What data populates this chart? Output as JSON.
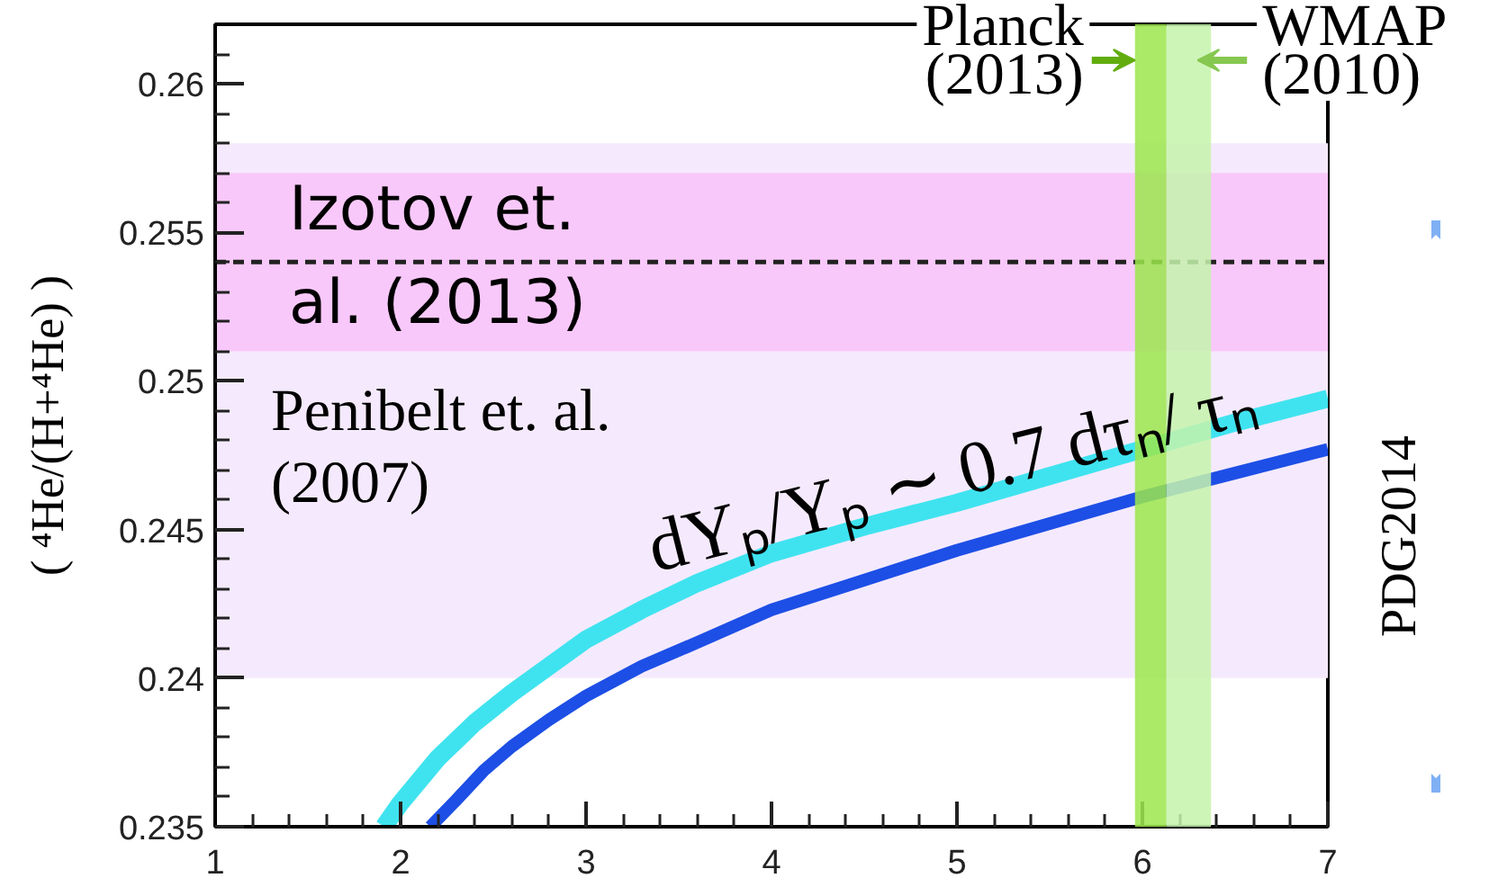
{
  "chart_data": {
    "type": "line",
    "ylabel": "( ⁴He/(H+⁴He) )",
    "series": [
      {
        "color": "#3fe3ef",
        "x": [
          1.91,
          2.0,
          2.2,
          2.4,
          2.6,
          2.8,
          3.0,
          3.3,
          3.6,
          4.0,
          4.5,
          5.0,
          5.5,
          6.0,
          6.5,
          7.0
        ],
        "values": [
          0.235,
          0.2358,
          0.2373,
          0.2385,
          0.2395,
          0.2404,
          0.2413,
          0.2423,
          0.2432,
          0.2442,
          0.2451,
          0.2459,
          0.2468,
          0.2477,
          0.2486,
          0.2494
        ]
      },
      {
        "color": "#1d4fe6",
        "x": [
          2.16,
          2.3,
          2.45,
          2.6,
          2.8,
          3.0,
          3.3,
          3.6,
          4.0,
          4.5,
          5.0,
          5.5,
          6.0,
          6.5,
          7.0
        ],
        "values": [
          0.235,
          0.2359,
          0.2369,
          0.2377,
          0.2386,
          0.2394,
          0.2404,
          0.2412,
          0.2423,
          0.2433,
          0.2443,
          0.2452,
          0.2461,
          0.2469,
          0.2477
        ]
      }
    ],
    "xlim": [
      1,
      7
    ],
    "ylim": [
      0.235,
      0.262
    ],
    "xticks": [
      1,
      {
        "value": 1.2,
        "label": null
      },
      {
        "value": 1.4,
        "label": null
      },
      {
        "value": 1.6,
        "label": null
      },
      {
        "value": 1.8,
        "label": null
      },
      2,
      {
        "value": 2.2,
        "label": null
      },
      {
        "value": 2.4,
        "label": null
      },
      {
        "value": 2.6,
        "label": null
      },
      {
        "value": 2.8,
        "label": null
      },
      3,
      {
        "value": 3.2,
        "label": null
      },
      {
        "value": 3.4,
        "label": null
      },
      {
        "value": 3.6,
        "label": null
      },
      {
        "value": 3.8,
        "label": null
      },
      4,
      {
        "value": 4.2,
        "label": null
      },
      {
        "value": 4.4,
        "label": null
      },
      {
        "value": 4.6,
        "label": null
      },
      {
        "value": 4.8,
        "label": null
      },
      5,
      {
        "value": 5.2,
        "label": null
      },
      {
        "value": 5.4,
        "label": null
      },
      {
        "value": 5.6,
        "label": null
      },
      {
        "value": 5.8,
        "label": null
      },
      6,
      {
        "value": 6.2,
        "label": null
      },
      {
        "value": 6.4,
        "label": null
      },
      {
        "value": 6.6,
        "label": null
      },
      {
        "value": 6.8,
        "label": null
      },
      7
    ],
    "yticks": [
      0.235,
      {
        "value": 0.236,
        "label": null
      },
      {
        "value": 0.237,
        "label": null
      },
      {
        "value": 0.238,
        "label": null
      },
      {
        "value": 0.239,
        "label": null
      },
      0.24,
      {
        "value": 0.241,
        "label": null
      },
      {
        "value": 0.242,
        "label": null
      },
      {
        "value": 0.243,
        "label": null
      },
      {
        "value": 0.244,
        "label": null
      },
      0.245,
      {
        "value": 0.246,
        "label": null
      },
      {
        "value": 0.247,
        "label": null
      },
      {
        "value": 0.248,
        "label": null
      },
      {
        "value": 0.249,
        "label": null
      },
      0.25,
      {
        "value": 0.251,
        "label": null
      },
      {
        "value": 0.252,
        "label": null
      },
      {
        "value": 0.253,
        "label": null
      },
      {
        "value": 0.254,
        "label": null
      },
      0.255,
      {
        "value": 0.256,
        "label": null
      },
      {
        "value": 0.257,
        "label": null
      },
      {
        "value": 0.258,
        "label": null
      },
      {
        "value": 0.259,
        "label": null
      },
      0.26,
      {
        "value": 0.261,
        "label": null
      }
    ],
    "bands": [
      {
        "axis": "y",
        "from": 0.24,
        "to": 0.258,
        "label": "Penibelt et. al.\n(2007)",
        "color": "#f5eafd"
      },
      {
        "axis": "y",
        "from": 0.251,
        "to": 0.257,
        "label": "Izotov et.\nal. (2013)",
        "color": "#f9c8fa"
      },
      {
        "axis": "x",
        "from": 5.96,
        "to": 6.13,
        "label": "Planck\n(2013)",
        "color": "#9be64b"
      },
      {
        "axis": "x",
        "from": 6.13,
        "to": 6.37,
        "label": "WMAP\n(2010)",
        "color": "#c6f3ac"
      }
    ],
    "ref_lines": [
      {
        "axis": "y",
        "value": 0.254,
        "line_style": "dashed",
        "color": "#222222"
      }
    ],
    "annotations": [
      "dYₚ/Yₚ ∼ 0.7 dτₙ/ τₙ",
      "PDG2014"
    ],
    "marker": "none",
    "line_style": "solid",
    "grid": false
  }
}
